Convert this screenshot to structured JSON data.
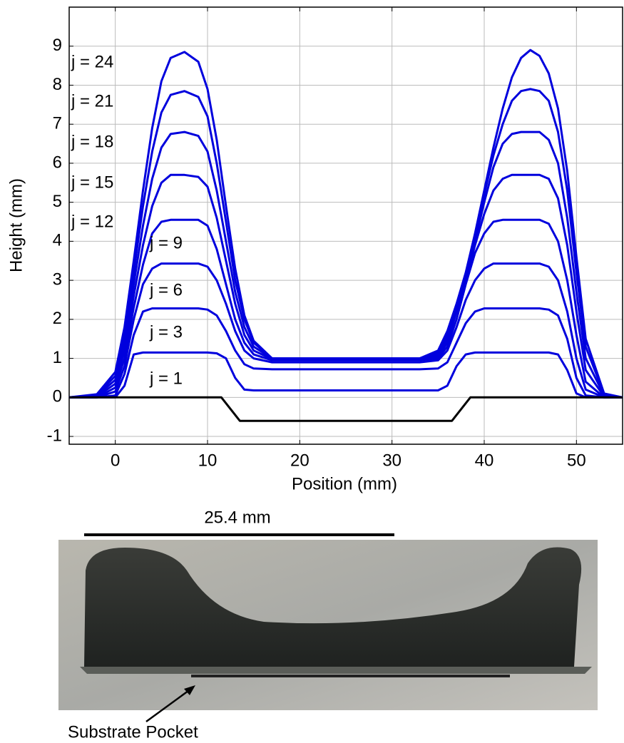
{
  "chart_data": {
    "type": "line",
    "xlabel": "Position (mm)",
    "ylabel": "Height (mm)",
    "xlim": [
      -5,
      55
    ],
    "ylim": [
      -1.2,
      10
    ],
    "xticks": [
      0,
      10,
      20,
      30,
      40,
      50
    ],
    "yticks": [
      -1,
      0,
      1,
      2,
      3,
      4,
      5,
      6,
      7,
      8,
      9
    ],
    "grid": true,
    "annotations": [
      "j = 24",
      "j = 21",
      "j = 18",
      "j = 15",
      "j = 12",
      "j = 9",
      "j = 6",
      "j = 3",
      "j = 1"
    ],
    "x": [
      -5,
      -2,
      0,
      1,
      2,
      3,
      4,
      5,
      6,
      7.5,
      9,
      10,
      11,
      12,
      13,
      14,
      15,
      17,
      20,
      30,
      33,
      35,
      36,
      37,
      38,
      39,
      40,
      41,
      42,
      43,
      44,
      45,
      46,
      47,
      48,
      49,
      50,
      51,
      53,
      55
    ],
    "series": [
      {
        "color": "#0000dd",
        "values": [
          0,
          0,
          0,
          0.3,
          1.1,
          1.15,
          1.15,
          1.15,
          1.15,
          1.15,
          1.15,
          1.15,
          1.13,
          1.0,
          0.5,
          0.2,
          0.18,
          0.18,
          0.18,
          0.18,
          0.18,
          0.18,
          0.3,
          0.8,
          1.1,
          1.15,
          1.15,
          1.15,
          1.15,
          1.15,
          1.15,
          1.15,
          1.15,
          1.15,
          1.1,
          0.7,
          0.1,
          0,
          0,
          0
        ]
      },
      {
        "color": "#0000dd",
        "values": [
          0,
          0,
          0.05,
          0.6,
          1.6,
          2.2,
          2.28,
          2.28,
          2.28,
          2.28,
          2.28,
          2.25,
          2.1,
          1.7,
          1.2,
          0.85,
          0.74,
          0.72,
          0.72,
          0.72,
          0.72,
          0.74,
          0.9,
          1.4,
          1.9,
          2.2,
          2.28,
          2.28,
          2.28,
          2.28,
          2.28,
          2.28,
          2.28,
          2.25,
          2.1,
          1.5,
          0.5,
          0.05,
          0,
          0
        ]
      },
      {
        "color": "#0000dd",
        "values": [
          0,
          0,
          0.15,
          0.8,
          2.0,
          2.9,
          3.3,
          3.43,
          3.43,
          3.43,
          3.43,
          3.35,
          3.0,
          2.4,
          1.7,
          1.2,
          1.0,
          0.9,
          0.9,
          0.9,
          0.9,
          0.95,
          1.2,
          1.8,
          2.5,
          3.0,
          3.3,
          3.43,
          3.43,
          3.43,
          3.43,
          3.43,
          3.43,
          3.35,
          3.0,
          2.2,
          1.0,
          0.2,
          0,
          0
        ]
      },
      {
        "color": "#0000dd",
        "values": [
          0,
          0,
          0.25,
          1.0,
          2.3,
          3.4,
          4.2,
          4.5,
          4.55,
          4.55,
          4.55,
          4.4,
          3.8,
          2.9,
          2.0,
          1.4,
          1.1,
          0.95,
          0.95,
          0.95,
          0.95,
          1.0,
          1.3,
          2.0,
          2.9,
          3.7,
          4.2,
          4.5,
          4.55,
          4.55,
          4.55,
          4.55,
          4.55,
          4.45,
          4.0,
          3.0,
          1.6,
          0.4,
          0,
          0
        ]
      },
      {
        "color": "#0000dd",
        "values": [
          0,
          0.02,
          0.35,
          1.2,
          2.6,
          3.9,
          4.9,
          5.5,
          5.7,
          5.7,
          5.65,
          5.4,
          4.6,
          3.5,
          2.4,
          1.6,
          1.2,
          0.98,
          0.97,
          0.97,
          0.97,
          1.05,
          1.4,
          2.2,
          3.0,
          3.9,
          4.7,
          5.3,
          5.6,
          5.7,
          5.7,
          5.7,
          5.7,
          5.6,
          5.1,
          3.9,
          2.2,
          0.7,
          0.02,
          0
        ]
      },
      {
        "color": "#0000dd",
        "values": [
          0,
          0.04,
          0.45,
          1.4,
          2.9,
          4.4,
          5.6,
          6.4,
          6.75,
          6.8,
          6.7,
          6.3,
          5.3,
          4.0,
          2.7,
          1.8,
          1.3,
          1.0,
          0.98,
          0.98,
          0.98,
          1.1,
          1.5,
          2.2,
          3.0,
          4.0,
          5.0,
          5.9,
          6.5,
          6.75,
          6.8,
          6.8,
          6.8,
          6.6,
          6.0,
          4.6,
          2.7,
          1.0,
          0.05,
          0
        ]
      },
      {
        "color": "#0000dd",
        "values": [
          0,
          0.06,
          0.55,
          1.6,
          3.2,
          4.9,
          6.3,
          7.3,
          7.75,
          7.85,
          7.7,
          7.2,
          6.0,
          4.5,
          3.0,
          2.0,
          1.4,
          1.0,
          1.0,
          1.0,
          1.0,
          1.15,
          1.6,
          2.3,
          3.1,
          4.1,
          5.2,
          6.2,
          7.0,
          7.6,
          7.85,
          7.9,
          7.85,
          7.6,
          6.8,
          5.3,
          3.2,
          1.3,
          0.08,
          0
        ]
      },
      {
        "color": "#0000dd",
        "values": [
          0,
          0.08,
          0.65,
          1.8,
          3.5,
          5.3,
          6.9,
          8.1,
          8.7,
          8.85,
          8.6,
          7.9,
          6.6,
          4.9,
          3.3,
          2.1,
          1.45,
          1.0,
          1.0,
          1.0,
          1.0,
          1.2,
          1.7,
          2.4,
          3.2,
          4.2,
          5.3,
          6.4,
          7.4,
          8.2,
          8.7,
          8.9,
          8.75,
          8.3,
          7.4,
          5.8,
          3.6,
          1.5,
          0.1,
          0
        ]
      },
      {
        "color": "#000000",
        "x": [
          -5,
          11.5,
          12.5,
          13.5,
          36.5,
          37.5,
          38.5,
          55
        ],
        "values": [
          0,
          0,
          -0.3,
          -0.6,
          -0.6,
          -0.3,
          0,
          0
        ]
      }
    ]
  },
  "photo": {
    "scale_bar": "25.4 mm",
    "callout": "Substrate Pocket"
  }
}
